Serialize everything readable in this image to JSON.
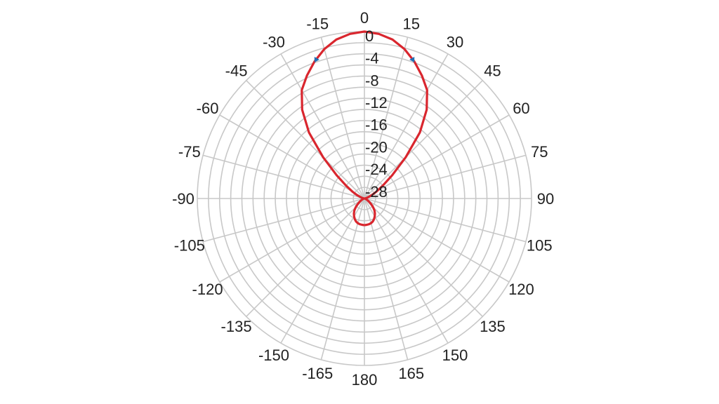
{
  "chart_data": {
    "type": "polar",
    "x": [
      -180,
      -175,
      -170,
      -165,
      -160,
      -155,
      -150,
      -145,
      -140,
      -135,
      -130,
      -125,
      -120,
      -115,
      -110,
      -105,
      -100,
      -95,
      -90,
      -85,
      -80,
      -75,
      -70,
      -65,
      -60,
      -55,
      -50,
      -45,
      -40,
      -35,
      -30,
      -25,
      -20,
      -15,
      -10,
      -5,
      0,
      5,
      10,
      15,
      20,
      25,
      30,
      35,
      40,
      45,
      50,
      55,
      60,
      65,
      70,
      75,
      80,
      85,
      90,
      95,
      100,
      105,
      110,
      115,
      120,
      125,
      130,
      135,
      140,
      145,
      150,
      155,
      160,
      165,
      170,
      175,
      180
    ],
    "series": [
      {
        "color": "#d9262e",
        "values": [
          -25.2,
          -25.25,
          -25.3,
          -25.4,
          -25.6,
          -25.9,
          -26.3,
          -26.7,
          -27.2,
          -27.8,
          -28.4,
          -28.9,
          -29.3,
          -29.6,
          -29.8,
          -29.9,
          -30,
          -30,
          -30,
          -29.9,
          -29.8,
          -29.6,
          -29.2,
          -28.5,
          -27.5,
          -26,
          -23.5,
          -19.5,
          -14.5,
          -10.5,
          -7.5,
          -5.6,
          -3.8,
          -2.2,
          -1.0,
          -0.3,
          0,
          -0.3,
          -1.0,
          -2.2,
          -3.8,
          -5.6,
          -7.5,
          -10.5,
          -14.5,
          -19.5,
          -23.5,
          -26,
          -27.5,
          -28.5,
          -29.2,
          -29.6,
          -29.8,
          -29.9,
          -30,
          -30,
          -30,
          -29.9,
          -29.8,
          -29.6,
          -29.3,
          -28.9,
          -28.4,
          -27.8,
          -27.2,
          -26.7,
          -26.3,
          -25.9,
          -25.6,
          -25.4,
          -25.3,
          -25.25,
          -25.2
        ]
      }
    ],
    "markers": {
      "color": "#1f6fb5",
      "x": [
        -19,
        19
      ],
      "values": [
        -3.6,
        -3.6
      ]
    },
    "rlim": [
      -30,
      0
    ],
    "rticks": [
      0,
      -4,
      -8,
      -12,
      -16,
      -20,
      -24,
      -28
    ],
    "xticks": [
      0,
      15,
      30,
      45,
      60,
      75,
      90,
      105,
      120,
      135,
      150,
      165,
      180,
      -165,
      -150,
      -135,
      -120,
      -105,
      -90,
      -75,
      -60,
      -45,
      -30,
      -15
    ],
    "grid": true
  }
}
